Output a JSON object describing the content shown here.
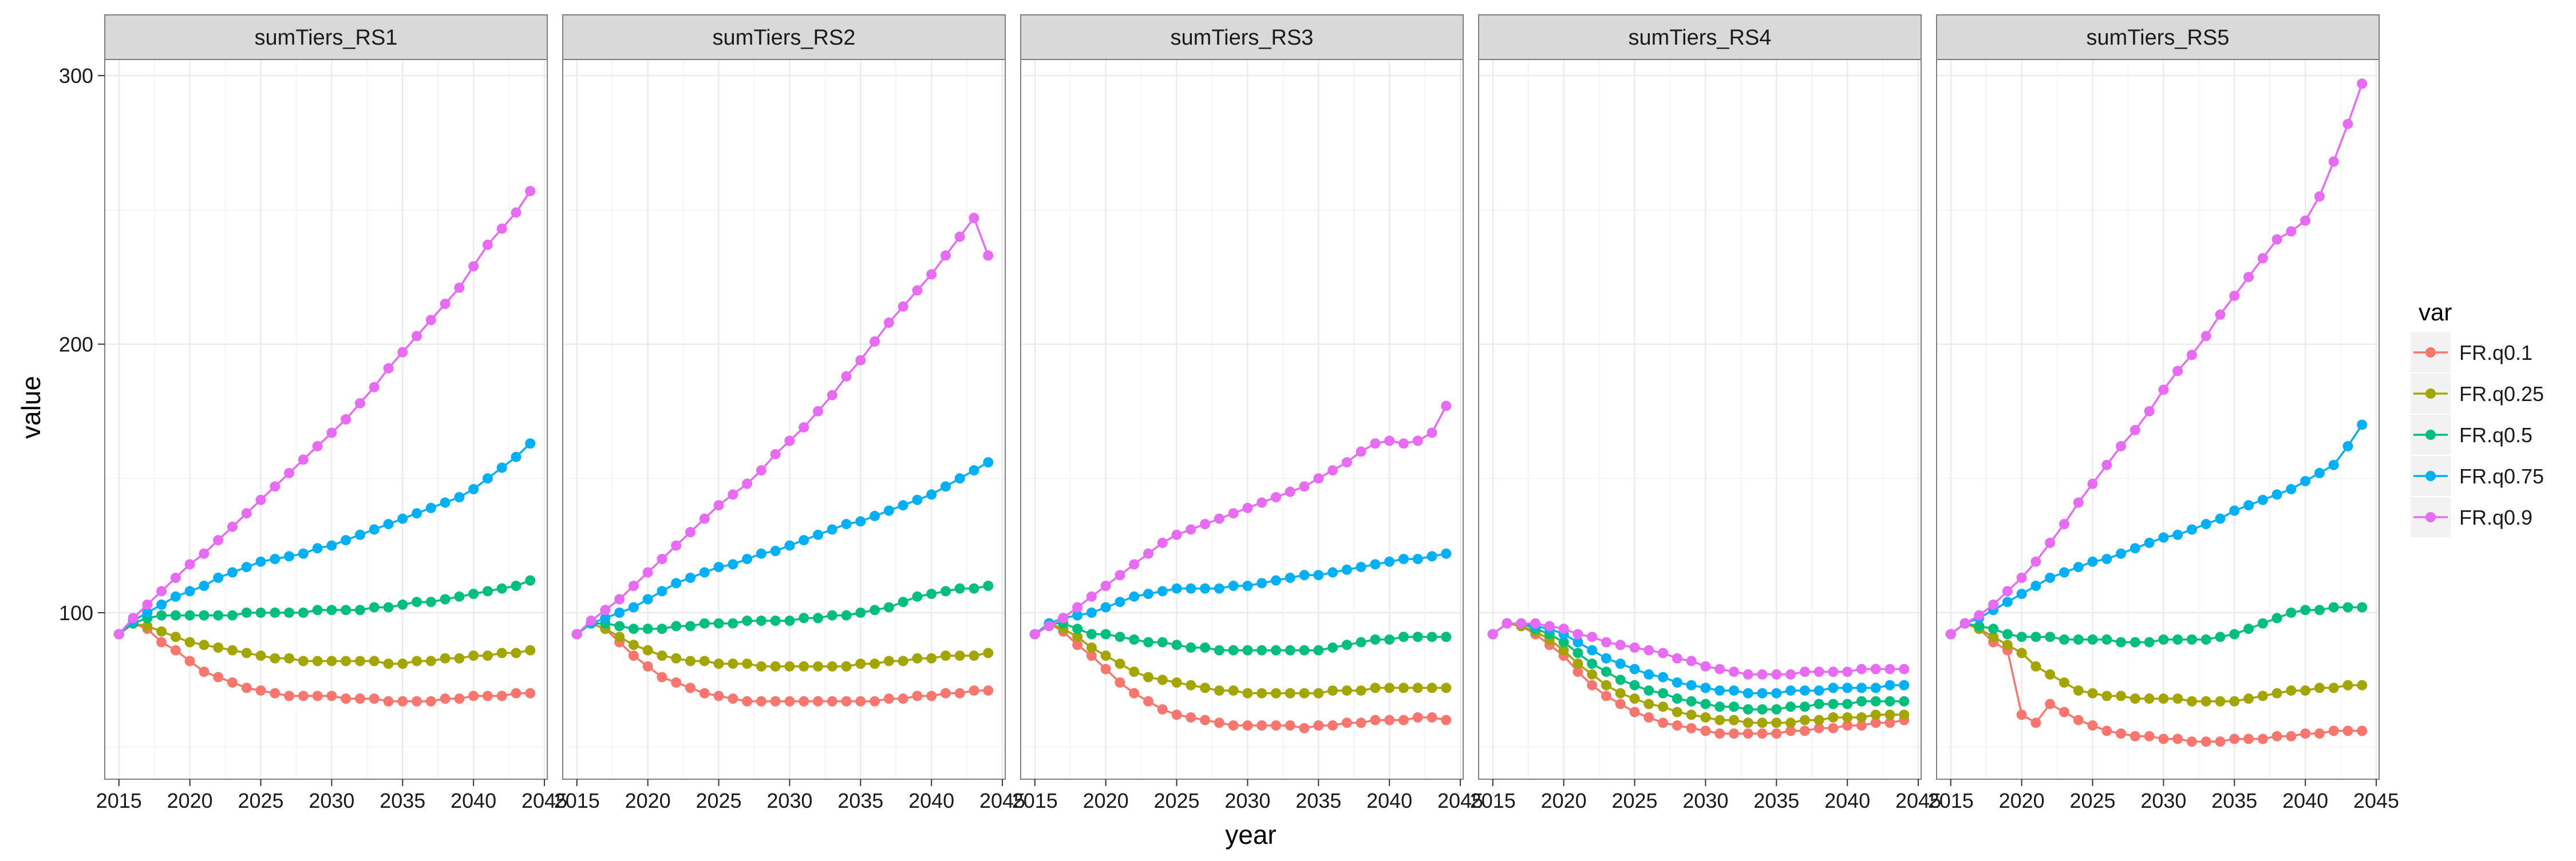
{
  "chart_data": {
    "type": "line",
    "markers": true,
    "xlabel": "year",
    "ylabel": "value",
    "xlim": [
      2014,
      2045.2
    ],
    "ylim": [
      38,
      306
    ],
    "x_ticks": [
      2015,
      2020,
      2025,
      2030,
      2035,
      2040,
      2045
    ],
    "y_ticks": [
      100,
      200,
      300
    ],
    "grid": true,
    "legend": {
      "title": "var",
      "position": "right",
      "entries": [
        "FR.q0.1",
        "FR.q0.25",
        "FR.q0.5",
        "FR.q0.75",
        "FR.q0.9"
      ]
    },
    "colors": {
      "FR.q0.1": "#F8766D",
      "FR.q0.25": "#A3A500",
      "FR.q0.5": "#00BF7D",
      "FR.q0.75": "#00B0F6",
      "FR.q0.9": "#E76BF3"
    },
    "x": [
      2015,
      2016,
      2017,
      2018,
      2019,
      2020,
      2021,
      2022,
      2023,
      2024,
      2025,
      2026,
      2027,
      2028,
      2029,
      2030,
      2031,
      2032,
      2033,
      2034,
      2035,
      2036,
      2037,
      2038,
      2039,
      2040,
      2041,
      2042,
      2043,
      2044
    ],
    "panels": [
      {
        "title": "sumTiers_RS1",
        "series": [
          {
            "name": "FR.q0.1",
            "values": [
              92,
              96,
              94,
              89,
              86,
              82,
              78,
              76,
              74,
              72,
              71,
              70,
              69,
              69,
              69,
              69,
              68,
              68,
              68,
              67,
              67,
              67,
              67,
              68,
              68,
              69,
              69,
              69,
              70,
              70
            ]
          },
          {
            "name": "FR.q0.25",
            "values": [
              92,
              96,
              95,
              93,
              91,
              89,
              88,
              87,
              86,
              85,
              84,
              83,
              83,
              82,
              82,
              82,
              82,
              82,
              82,
              81,
              81,
              82,
              82,
              83,
              83,
              84,
              84,
              85,
              85,
              86
            ]
          },
          {
            "name": "FR.q0.5",
            "values": [
              92,
              96,
              98,
              99,
              99,
              99,
              99,
              99,
              99,
              100,
              100,
              100,
              100,
              100,
              101,
              101,
              101,
              101,
              102,
              102,
              103,
              104,
              104,
              105,
              106,
              107,
              108,
              109,
              110,
              112
            ]
          },
          {
            "name": "FR.q0.75",
            "values": [
              92,
              97,
              100,
              103,
              106,
              108,
              110,
              113,
              115,
              117,
              119,
              120,
              121,
              122,
              124,
              125,
              127,
              129,
              131,
              133,
              135,
              137,
              139,
              141,
              143,
              146,
              150,
              154,
              158,
              163
            ]
          },
          {
            "name": "FR.q0.9",
            "values": [
              92,
              98,
              103,
              108,
              113,
              118,
              122,
              127,
              132,
              137,
              142,
              147,
              152,
              157,
              162,
              167,
              172,
              178,
              184,
              191,
              197,
              203,
              209,
              215,
              221,
              229,
              237,
              243,
              249,
              257
            ]
          }
        ]
      },
      {
        "title": "sumTiers_RS2",
        "series": [
          {
            "name": "FR.q0.1",
            "values": [
              92,
              96,
              94,
              89,
              84,
              80,
              76,
              74,
              72,
              70,
              69,
              68,
              67,
              67,
              67,
              67,
              67,
              67,
              67,
              67,
              67,
              67,
              68,
              68,
              69,
              69,
              70,
              70,
              71,
              71
            ]
          },
          {
            "name": "FR.q0.25",
            "values": [
              92,
              96,
              94,
              91,
              88,
              86,
              84,
              83,
              82,
              82,
              81,
              81,
              81,
              80,
              80,
              80,
              80,
              80,
              80,
              80,
              81,
              81,
              82,
              82,
              83,
              83,
              84,
              84,
              84,
              85
            ]
          },
          {
            "name": "FR.q0.5",
            "values": [
              92,
              96,
              96,
              95,
              94,
              94,
              94,
              95,
              95,
              96,
              96,
              96,
              97,
              97,
              97,
              97,
              98,
              98,
              99,
              99,
              100,
              101,
              102,
              104,
              106,
              107,
              108,
              109,
              109,
              110
            ]
          },
          {
            "name": "FR.q0.75",
            "values": [
              92,
              96,
              98,
              100,
              102,
              105,
              108,
              111,
              113,
              115,
              117,
              118,
              120,
              122,
              123,
              125,
              127,
              129,
              131,
              133,
              134,
              136,
              138,
              140,
              142,
              144,
              147,
              150,
              153,
              156
            ]
          },
          {
            "name": "FR.q0.9",
            "values": [
              92,
              97,
              101,
              105,
              110,
              115,
              120,
              125,
              130,
              135,
              140,
              144,
              148,
              153,
              159,
              164,
              169,
              175,
              181,
              188,
              194,
              201,
              208,
              214,
              220,
              226,
              233,
              240,
              247,
              233
            ]
          }
        ]
      },
      {
        "title": "sumTiers_RS3",
        "series": [
          {
            "name": "FR.q0.1",
            "values": [
              92,
              96,
              93,
              88,
              84,
              79,
              74,
              70,
              67,
              64,
              62,
              61,
              60,
              59,
              58,
              58,
              58,
              58,
              58,
              57,
              58,
              58,
              59,
              59,
              60,
              60,
              60,
              61,
              61,
              60
            ]
          },
          {
            "name": "FR.q0.25",
            "values": [
              92,
              96,
              94,
              91,
              87,
              84,
              81,
              78,
              76,
              75,
              74,
              73,
              72,
              71,
              71,
              70,
              70,
              70,
              70,
              70,
              70,
              71,
              71,
              71,
              72,
              72,
              72,
              72,
              72,
              72
            ]
          },
          {
            "name": "FR.q0.5",
            "values": [
              92,
              96,
              96,
              94,
              92,
              92,
              91,
              90,
              89,
              89,
              88,
              87,
              87,
              86,
              86,
              86,
              86,
              86,
              86,
              86,
              86,
              87,
              88,
              89,
              90,
              90,
              91,
              91,
              91,
              91
            ]
          },
          {
            "name": "FR.q0.75",
            "values": [
              92,
              96,
              98,
              99,
              100,
              102,
              104,
              106,
              107,
              108,
              109,
              109,
              109,
              109,
              110,
              110,
              111,
              112,
              113,
              114,
              114,
              115,
              116,
              117,
              118,
              119,
              120,
              120,
              121,
              122
            ]
          },
          {
            "name": "FR.q0.9",
            "values": [
              92,
              95,
              98,
              102,
              106,
              110,
              114,
              118,
              122,
              126,
              129,
              131,
              133,
              135,
              137,
              139,
              141,
              143,
              145,
              147,
              150,
              153,
              156,
              160,
              163,
              164,
              163,
              164,
              167,
              177
            ]
          }
        ]
      },
      {
        "title": "sumTiers_RS4",
        "series": [
          {
            "name": "FR.q0.1",
            "values": [
              92,
              96,
              95,
              92,
              88,
              84,
              78,
              73,
              69,
              66,
              63,
              61,
              59,
              58,
              57,
              56,
              55,
              55,
              55,
              55,
              55,
              56,
              56,
              57,
              57,
              58,
              58,
              59,
              59,
              60
            ]
          },
          {
            "name": "FR.q0.25",
            "values": [
              92,
              96,
              95,
              93,
              90,
              86,
              81,
              77,
              73,
              70,
              68,
              66,
              65,
              63,
              62,
              61,
              60,
              60,
              59,
              59,
              59,
              59,
              60,
              60,
              61,
              61,
              61,
              62,
              62,
              62
            ]
          },
          {
            "name": "FR.q0.5",
            "values": [
              92,
              96,
              96,
              94,
              92,
              89,
              85,
              81,
              78,
              75,
              73,
              71,
              70,
              68,
              67,
              66,
              65,
              65,
              64,
              64,
              64,
              65,
              65,
              66,
              66,
              66,
              67,
              67,
              67,
              67
            ]
          },
          {
            "name": "FR.q0.75",
            "values": [
              92,
              96,
              96,
              95,
              94,
              92,
              89,
              86,
              83,
              81,
              79,
              77,
              76,
              74,
              73,
              72,
              71,
              71,
              70,
              70,
              70,
              71,
              71,
              71,
              72,
              72,
              72,
              72,
              73,
              73
            ]
          },
          {
            "name": "FR.q0.9",
            "values": [
              92,
              96,
              96,
              96,
              95,
              94,
              92,
              91,
              89,
              88,
              87,
              86,
              85,
              83,
              82,
              80,
              79,
              78,
              77,
              77,
              77,
              77,
              78,
              78,
              78,
              78,
              79,
              79,
              79,
              79
            ]
          }
        ]
      },
      {
        "title": "sumTiers_RS5",
        "series": [
          {
            "name": "FR.q0.1",
            "values": [
              92,
              96,
              94,
              89,
              86,
              62,
              59,
              66,
              63,
              60,
              58,
              56,
              55,
              54,
              54,
              53,
              53,
              52,
              52,
              52,
              53,
              53,
              53,
              54,
              54,
              55,
              55,
              56,
              56,
              56
            ]
          },
          {
            "name": "FR.q0.25",
            "values": [
              92,
              96,
              94,
              91,
              88,
              85,
              80,
              77,
              74,
              71,
              70,
              69,
              69,
              68,
              68,
              68,
              68,
              67,
              67,
              67,
              67,
              68,
              69,
              70,
              71,
              71,
              72,
              72,
              73,
              73
            ]
          },
          {
            "name": "FR.q0.5",
            "values": [
              92,
              96,
              95,
              94,
              92,
              91,
              91,
              91,
              90,
              90,
              90,
              90,
              89,
              89,
              89,
              90,
              90,
              90,
              90,
              91,
              92,
              94,
              96,
              98,
              100,
              101,
              101,
              102,
              102,
              102
            ]
          },
          {
            "name": "FR.q0.75",
            "values": [
              92,
              96,
              98,
              101,
              104,
              107,
              110,
              113,
              115,
              117,
              119,
              120,
              122,
              124,
              126,
              128,
              129,
              131,
              133,
              135,
              138,
              140,
              142,
              144,
              146,
              149,
              152,
              155,
              162,
              170
            ]
          },
          {
            "name": "FR.q0.9",
            "values": [
              92,
              96,
              99,
              103,
              108,
              113,
              119,
              126,
              133,
              141,
              148,
              155,
              162,
              168,
              175,
              183,
              190,
              196,
              203,
              211,
              218,
              225,
              232,
              239,
              242,
              246,
              255,
              268,
              282,
              297
            ]
          }
        ]
      }
    ]
  }
}
